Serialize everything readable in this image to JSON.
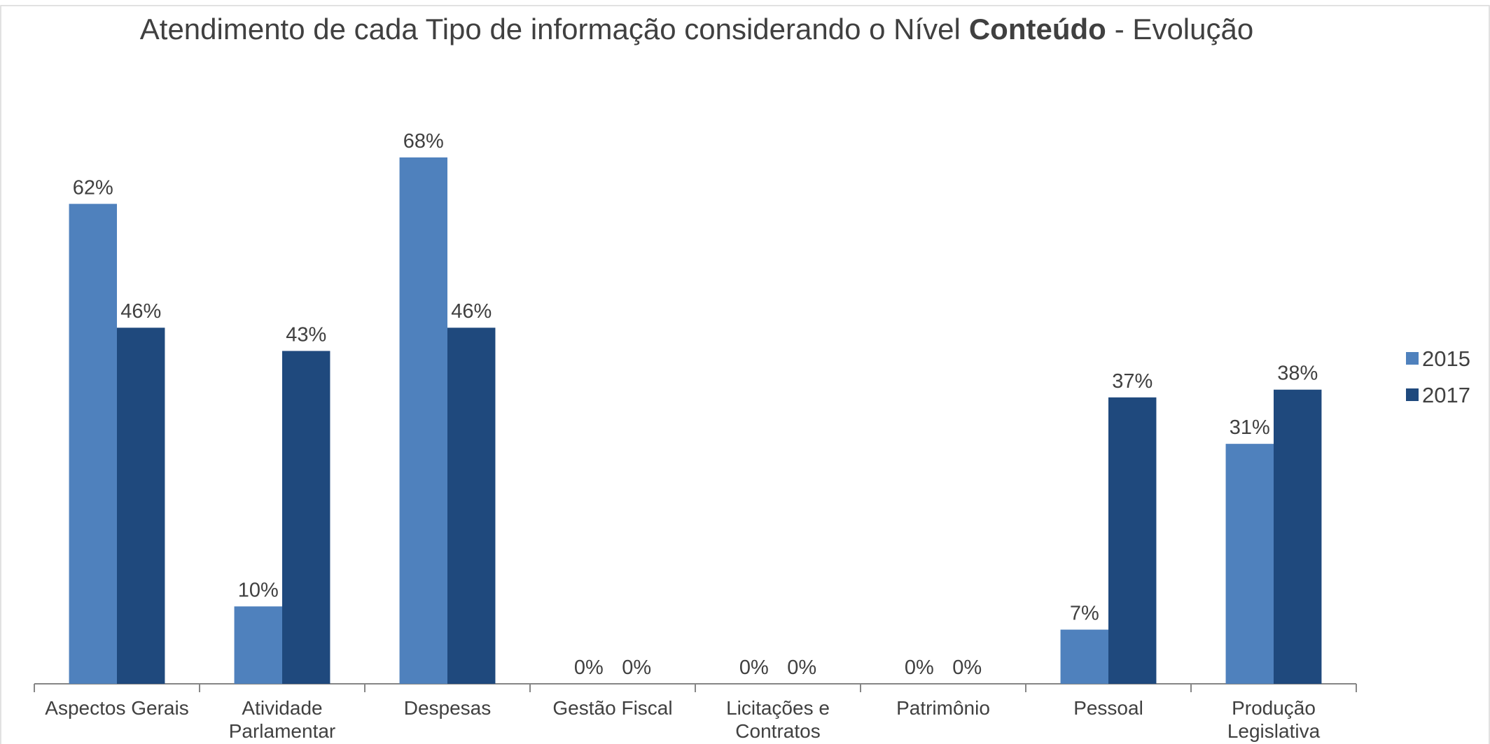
{
  "chart_data": {
    "type": "bar",
    "title": [
      "Atendimento de cada Tipo de informação considerando o Nível",
      "Conteúdo",
      "- Evolução"
    ],
    "categories": [
      "Aspectos Gerais",
      "Atividade Parlamentar",
      "Despesas",
      "Gestão Fiscal",
      "Licitações e Contratos",
      "Patrimônio",
      "Pessoal",
      "Produção Legislativa"
    ],
    "series": [
      {
        "name": "2015",
        "color": "#4f81bd",
        "values": [
          62,
          10,
          68,
          0,
          0,
          0,
          7,
          31
        ],
        "value_labels": [
          "62%",
          "10%",
          "68%",
          "0%",
          "0%",
          "0%",
          "7%",
          "31%"
        ]
      },
      {
        "name": "2017",
        "color": "#1f497d",
        "values": [
          46,
          43,
          46,
          0,
          0,
          0,
          37,
          38
        ],
        "value_labels": [
          "46%",
          "43%",
          "46%",
          "0%",
          "0%",
          "0%",
          "37%",
          "38%"
        ]
      }
    ],
    "legend": "right"
  }
}
